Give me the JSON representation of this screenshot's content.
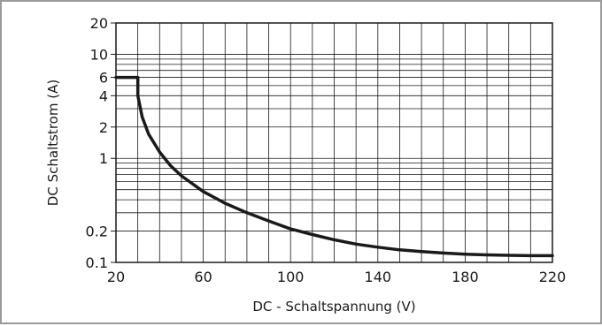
{
  "chart_data": {
    "type": "line",
    "xlabel": "DC - Schaltspannung (V)",
    "ylabel": "DC Schaltstrom (A)",
    "xlim": [
      20,
      220
    ],
    "ylim": [
      0.1,
      20
    ],
    "yscale": "log",
    "grid": true,
    "x_ticks": [
      20,
      60,
      100,
      140,
      180,
      220
    ],
    "x_tick_labels": [
      "20",
      "60",
      "100",
      "140",
      "180",
      "220"
    ],
    "y_ticks": [
      0.1,
      0.2,
      1,
      2,
      4,
      6,
      10,
      20
    ],
    "y_tick_labels": [
      "0.1",
      "0.2",
      "1",
      "2",
      "4",
      "6",
      "10",
      "20"
    ],
    "series": [
      {
        "color": "#1a1a1a",
        "x": [
          20,
          30,
          30,
          32,
          35,
          40,
          45,
          50,
          60,
          70,
          80,
          90,
          100,
          110,
          120,
          130,
          140,
          150,
          160,
          170,
          180,
          190,
          200,
          210,
          220
        ],
        "y": [
          6,
          6,
          4,
          2.5,
          1.7,
          1.15,
          0.85,
          0.68,
          0.48,
          0.37,
          0.3,
          0.25,
          0.21,
          0.185,
          0.165,
          0.15,
          0.14,
          0.132,
          0.127,
          0.123,
          0.12,
          0.118,
          0.117,
          0.116,
          0.116
        ]
      }
    ]
  }
}
